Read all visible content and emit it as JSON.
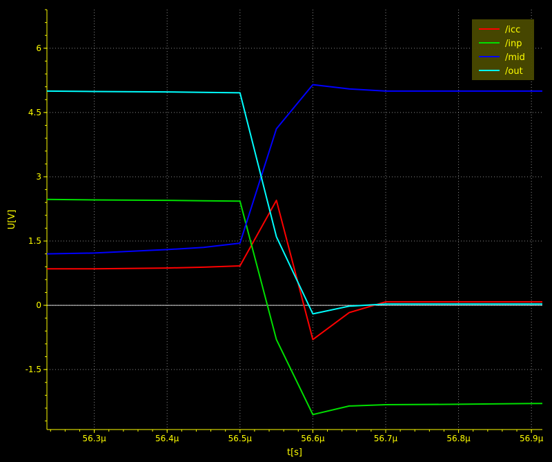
{
  "chart_data": {
    "type": "line",
    "xlabel": "t[s]",
    "ylabel": "U[V]",
    "xlim": [
      56.235,
      56.915
    ],
    "ylim": [
      -2.9,
      6.9
    ],
    "x_ticks": [
      {
        "value": 56.3,
        "label": "56.3µ"
      },
      {
        "value": 56.4,
        "label": "56.4µ"
      },
      {
        "value": 56.5,
        "label": "56.5µ"
      },
      {
        "value": 56.6,
        "label": "56.6µ"
      },
      {
        "value": 56.7,
        "label": "56.7µ"
      },
      {
        "value": 56.8,
        "label": "56.8µ"
      },
      {
        "value": 56.9,
        "label": "56.9µ"
      }
    ],
    "y_ticks": [
      {
        "value": -1.5,
        "label": "-1.5"
      },
      {
        "value": 0,
        "label": "0"
      },
      {
        "value": 1.5,
        "label": "1.5"
      },
      {
        "value": 3,
        "label": "3"
      },
      {
        "value": 4.5,
        "label": "4.5"
      },
      {
        "value": 6,
        "label": "6"
      }
    ],
    "grid": true,
    "zero_line": true,
    "legend_position": "top-right",
    "series": [
      {
        "name": "/icc",
        "color": "#ff0000",
        "x": [
          56.235,
          56.3,
          56.4,
          56.45,
          56.5,
          56.55,
          56.6,
          56.65,
          56.7,
          56.8,
          56.915
        ],
        "y": [
          0.85,
          0.85,
          0.87,
          0.89,
          0.92,
          2.45,
          -0.8,
          -0.17,
          0.08,
          0.08,
          0.08
        ]
      },
      {
        "name": "/inp",
        "color": "#00e000",
        "x": [
          56.235,
          56.3,
          56.4,
          56.45,
          56.5,
          56.55,
          56.6,
          56.65,
          56.7,
          56.8,
          56.915
        ],
        "y": [
          2.47,
          2.46,
          2.45,
          2.44,
          2.43,
          -0.8,
          -2.55,
          -2.35,
          -2.32,
          -2.31,
          -2.29
        ]
      },
      {
        "name": "/mid",
        "color": "#0000ff",
        "x": [
          56.235,
          56.3,
          56.4,
          56.45,
          56.5,
          56.55,
          56.6,
          56.65,
          56.7,
          56.8,
          56.915
        ],
        "y": [
          1.2,
          1.22,
          1.3,
          1.35,
          1.45,
          4.12,
          5.15,
          5.05,
          5.0,
          5.0,
          5.0
        ]
      },
      {
        "name": "/out",
        "color": "#00ffff",
        "x": [
          56.235,
          56.3,
          56.4,
          56.45,
          56.5,
          56.55,
          56.6,
          56.65,
          56.7,
          56.8,
          56.915
        ],
        "y": [
          5.0,
          4.99,
          4.98,
          4.97,
          4.96,
          1.6,
          -0.2,
          -0.02,
          0.03,
          0.03,
          0.03
        ]
      }
    ]
  },
  "colors": {
    "background": "#000000",
    "axis": "#ffff00",
    "grid": "#ffffff",
    "legend_bg": "#4a4a00"
  }
}
